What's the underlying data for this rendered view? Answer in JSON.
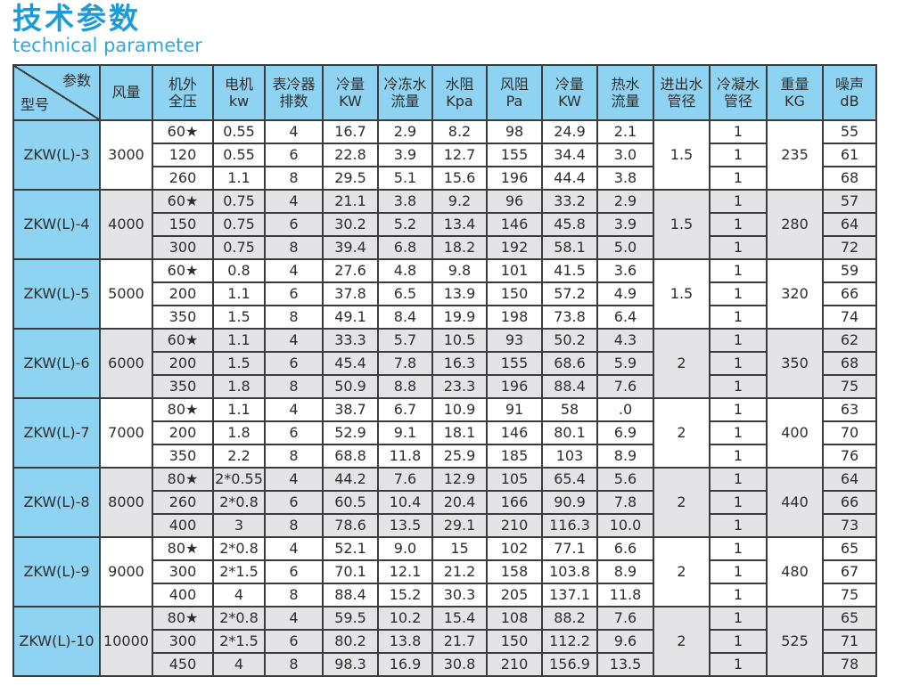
{
  "page": {
    "title": "技术参数",
    "subtitle": "technical parameter"
  },
  "colors": {
    "title_blue": "#1e9bd7",
    "subtitle_blue": "#2fa9dd",
    "header_cell_blue": "#8ed3f2",
    "shaded_row_gray": "#e4e4e6",
    "plain_row_white": "#ffffff",
    "grid_border": "#3b3b3b"
  },
  "table": {
    "corner": {
      "top_right": "参数",
      "bottom_left": "型号"
    },
    "headers": [
      {
        "key": "air-volume",
        "lines": [
          "风量"
        ]
      },
      {
        "key": "ext-static-pressure",
        "lines": [
          "机外",
          "全压"
        ]
      },
      {
        "key": "motor-kw",
        "lines": [
          "电机",
          "kw"
        ]
      },
      {
        "key": "coil-rows",
        "lines": [
          "表冷器",
          "排数"
        ]
      },
      {
        "key": "cooling-kw",
        "lines": [
          "冷量",
          "KW"
        ]
      },
      {
        "key": "chilled-water-flow",
        "lines": [
          "冷冻水",
          "流量"
        ]
      },
      {
        "key": "water-resistance",
        "lines": [
          "水阻",
          "Kpa"
        ]
      },
      {
        "key": "air-resistance",
        "lines": [
          "风阻",
          "Pa"
        ]
      },
      {
        "key": "heating-kw",
        "lines": [
          "冷量",
          "KW"
        ]
      },
      {
        "key": "hot-water-flow",
        "lines": [
          "热水",
          "流量"
        ]
      },
      {
        "key": "inout-pipe-dia",
        "lines": [
          "进出水",
          "管径"
        ]
      },
      {
        "key": "condensate-pipe-dia",
        "lines": [
          "冷凝水",
          "管径"
        ]
      },
      {
        "key": "weight-kg",
        "lines": [
          "重量",
          "KG"
        ]
      },
      {
        "key": "noise-db",
        "lines": [
          "噪声",
          "dB"
        ]
      }
    ],
    "row_keys": [
      "pressure",
      "motor_kw",
      "coil_rows",
      "cooling_kw",
      "chilled_flow",
      "water_res_kpa",
      "air_res_pa",
      "heating_kw",
      "hot_flow",
      "condensate_dia",
      "noise_db"
    ],
    "groups": [
      {
        "model": "ZKW(L)-3",
        "air_volume": "3000",
        "pipe_diameter": "1.5",
        "weight": "235",
        "rows": [
          [
            "60★",
            "0.55",
            "4",
            "16.7",
            "2.9",
            "8.2",
            "98",
            "24.9",
            "2.1",
            "1",
            "55"
          ],
          [
            "120",
            "0.55",
            "6",
            "22.8",
            "3.9",
            "12.7",
            "155",
            "34.4",
            "3.0",
            "1",
            "61"
          ],
          [
            "260",
            "1.1",
            "8",
            "29.5",
            "5.1",
            "15.6",
            "196",
            "44.4",
            "3.8",
            "1",
            "68"
          ]
        ]
      },
      {
        "model": "ZKW(L)-4",
        "air_volume": "4000",
        "pipe_diameter": "1.5",
        "weight": "280",
        "rows": [
          [
            "60★",
            "0.75",
            "4",
            "21.1",
            "3.8",
            "9.2",
            "96",
            "33.2",
            "2.9",
            "1",
            "57"
          ],
          [
            "150",
            "0.75",
            "6",
            "30.2",
            "5.2",
            "13.4",
            "146",
            "45.8",
            "3.9",
            "1",
            "64"
          ],
          [
            "300",
            "0.75",
            "8",
            "39.4",
            "6.8",
            "18.2",
            "192",
            "58.1",
            "5.0",
            "1",
            "72"
          ]
        ]
      },
      {
        "model": "ZKW(L)-5",
        "air_volume": "5000",
        "pipe_diameter": "1.5",
        "weight": "320",
        "rows": [
          [
            "60★",
            "0.8",
            "4",
            "27.6",
            "4.8",
            "9.8",
            "101",
            "41.5",
            "3.6",
            "1",
            "59"
          ],
          [
            "200",
            "1.1",
            "6",
            "37.8",
            "6.5",
            "13.9",
            "150",
            "57.2",
            "4.9",
            "1",
            "66"
          ],
          [
            "350",
            "1.5",
            "8",
            "49.1",
            "8.4",
            "19.9",
            "198",
            "73.8",
            "6.4",
            "1",
            "74"
          ]
        ]
      },
      {
        "model": "ZKW(L)-6",
        "air_volume": "6000",
        "pipe_diameter": "2",
        "weight": "350",
        "rows": [
          [
            "60★",
            "1.1",
            "4",
            "33.3",
            "5.7",
            "10.5",
            "93",
            "50.2",
            "4.3",
            "1",
            "62"
          ],
          [
            "200",
            "1.5",
            "6",
            "45.4",
            "7.8",
            "16.3",
            "155",
            "68.6",
            "5.9",
            "1",
            "68"
          ],
          [
            "350",
            "1.8",
            "8",
            "50.9",
            "8.8",
            "23.3",
            "196",
            "88.4",
            "7.6",
            "1",
            "75"
          ]
        ]
      },
      {
        "model": "ZKW(L)-7",
        "air_volume": "7000",
        "pipe_diameter": "2",
        "weight": "400",
        "rows": [
          [
            "80★",
            "1.1",
            "4",
            "38.7",
            "6.7",
            "10.9",
            "91",
            "58",
            ".0",
            "1",
            "63"
          ],
          [
            "200",
            "1.8",
            "6",
            "52.9",
            "9.1",
            "18.1",
            "146",
            "80.1",
            "6.9",
            "1",
            "70"
          ],
          [
            "350",
            "2.2",
            "8",
            "68.8",
            "11.8",
            "25.9",
            "185",
            "103",
            "8.9",
            "1",
            "76"
          ]
        ]
      },
      {
        "model": "ZKW(L)-8",
        "air_volume": "8000",
        "pipe_diameter": "2",
        "weight": "440",
        "rows": [
          [
            "80★",
            "2*0.55",
            "4",
            "44.2",
            "7.6",
            "12.9",
            "105",
            "65.4",
            "5.6",
            "1",
            "64"
          ],
          [
            "260",
            "2*0.8",
            "6",
            "60.5",
            "10.4",
            "20.4",
            "166",
            "90.9",
            "7.8",
            "1",
            "66"
          ],
          [
            "400",
            "3",
            "8",
            "78.6",
            "13.5",
            "29.1",
            "210",
            "116.3",
            "10.0",
            "1",
            "73"
          ]
        ]
      },
      {
        "model": "ZKW(L)-9",
        "air_volume": "9000",
        "pipe_diameter": "2",
        "weight": "480",
        "rows": [
          [
            "80★",
            "2*0.8",
            "4",
            "52.1",
            "9.0",
            "15",
            "102",
            "77.1",
            "6.6",
            "1",
            "65"
          ],
          [
            "300",
            "2*1.5",
            "6",
            "70.1",
            "12.1",
            "21.2",
            "158",
            "103.8",
            "8.9",
            "1",
            "67"
          ],
          [
            "400",
            "4",
            "8",
            "88.4",
            "15.2",
            "30.3",
            "205",
            "137.1",
            "11.8",
            "1",
            "75"
          ]
        ]
      },
      {
        "model": "ZKW(L)-10",
        "air_volume": "10000",
        "pipe_diameter": "2",
        "weight": "525",
        "rows": [
          [
            "80★",
            "2*0.8",
            "4",
            "59.5",
            "10.2",
            "15.4",
            "108",
            "88.2",
            "7.6",
            "1",
            "65"
          ],
          [
            "300",
            "2*1.5",
            "6",
            "80.2",
            "13.8",
            "21.7",
            "150",
            "112.2",
            "9.6",
            "1",
            "71"
          ],
          [
            "450",
            "4",
            "8",
            "98.3",
            "16.9",
            "30.8",
            "210",
            "156.9",
            "13.5",
            "1",
            "78"
          ]
        ]
      }
    ]
  }
}
